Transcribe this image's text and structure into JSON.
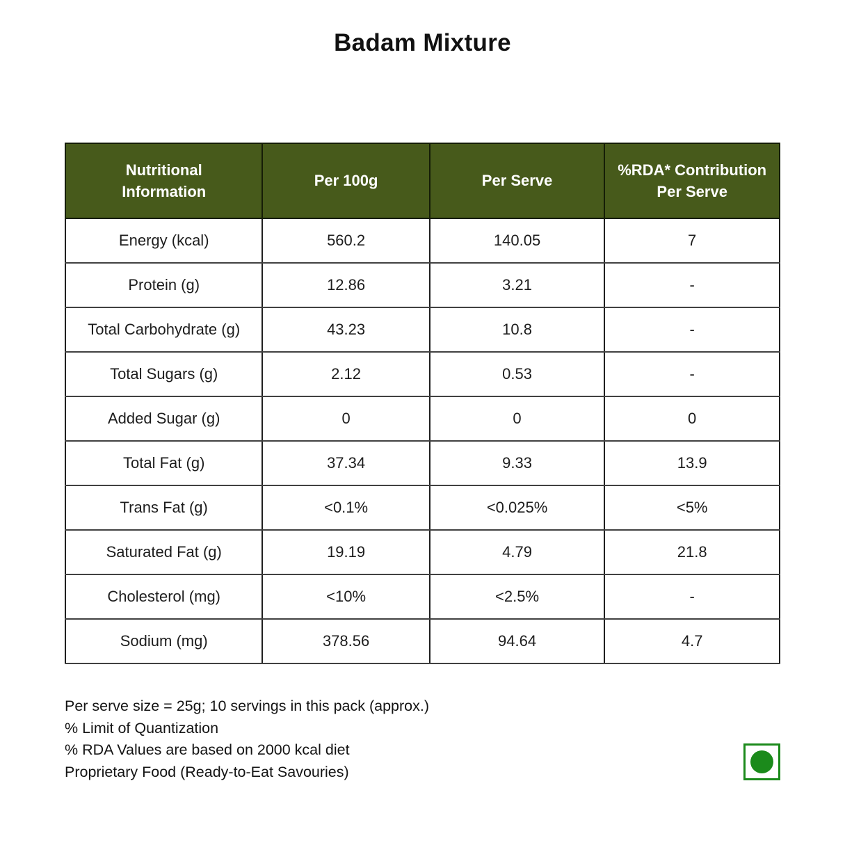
{
  "title": "Badam Mixture",
  "colors": {
    "header_bg": "#475a1b",
    "header_text": "#ffffff",
    "veg_mark_green": "#1b8a1b",
    "body_text": "#1d1d1d"
  },
  "table": {
    "headers": [
      "Nutritional Information",
      "Per 100g",
      "Per Serve",
      "%RDA* Contribution Per Serve"
    ],
    "rows": [
      {
        "label": "Energy (kcal)",
        "per_100g": "560.2",
        "per_serve": "140.05",
        "rda": "7"
      },
      {
        "label": "Protein (g)",
        "per_100g": "12.86",
        "per_serve": "3.21",
        "rda": "-"
      },
      {
        "label": "Total Carbohydrate (g)",
        "per_100g": "43.23",
        "per_serve": "10.8",
        "rda": "-"
      },
      {
        "label": "Total Sugars (g)",
        "per_100g": "2.12",
        "per_serve": "0.53",
        "rda": "-"
      },
      {
        "label": "Added Sugar (g)",
        "per_100g": "0",
        "per_serve": "0",
        "rda": "0"
      },
      {
        "label": "Total Fat (g)",
        "per_100g": "37.34",
        "per_serve": "9.33",
        "rda": "13.9"
      },
      {
        "label": "Trans Fat (g)",
        "per_100g": "<0.1%",
        "per_serve": "<0.025%",
        "rda": "<5%"
      },
      {
        "label": "Saturated Fat (g)",
        "per_100g": "19.19",
        "per_serve": "4.79",
        "rda": "21.8"
      },
      {
        "label": "Cholesterol (mg)",
        "per_100g": "<10%",
        "per_serve": "<2.5%",
        "rda": "-"
      },
      {
        "label": "Sodium (mg)",
        "per_100g": "378.56",
        "per_serve": "94.64",
        "rda": "4.7"
      }
    ]
  },
  "footnotes": [
    "Per serve size = 25g; 10 servings in this pack (approx.)",
    "% Limit of Quantization",
    "% RDA Values are based on 2000 kcal diet",
    "Proprietary Food (Ready-to-Eat Savouries)"
  ],
  "veg_mark": {
    "meaning": "vegetarian"
  }
}
